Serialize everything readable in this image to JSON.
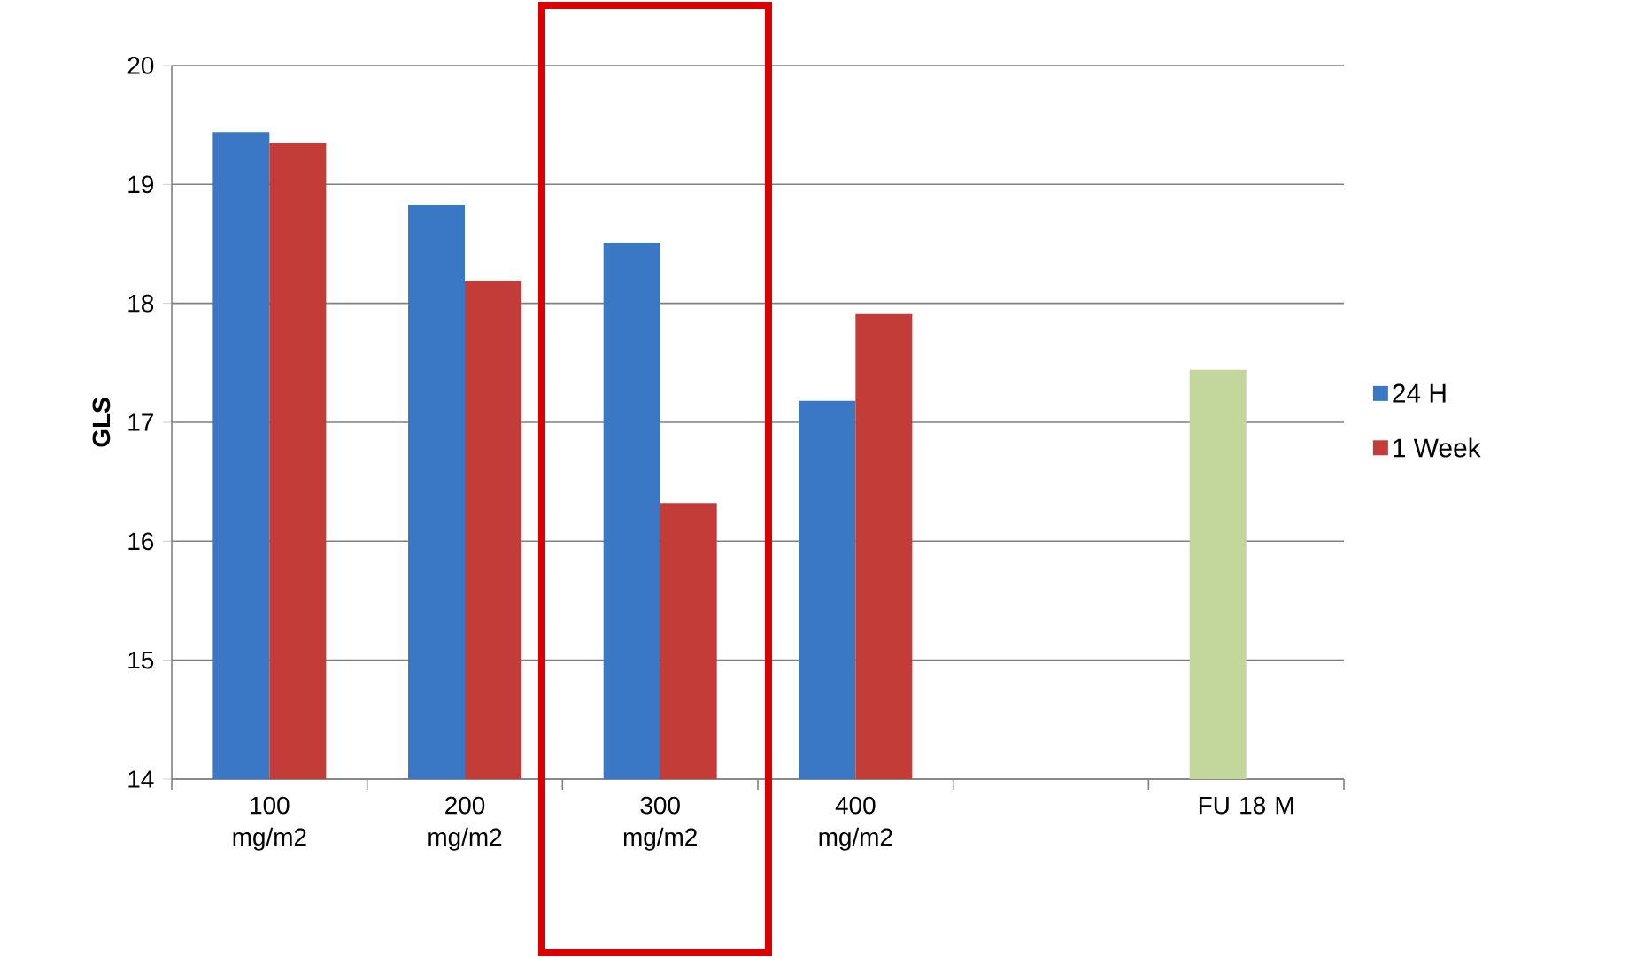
{
  "chart_data": {
    "type": "bar",
    "ylabel": "GLS",
    "categories": [
      "100 mg/m2",
      "200 mg/m2",
      "300 mg/m2",
      "400 mg/m2",
      null,
      "FU 18 M"
    ],
    "series": [
      {
        "name": "24 H",
        "color": "#3a78c6",
        "colors": [
          "#3a78c6",
          "#3a78c6",
          "#3a78c6",
          "#3a78c6",
          "#3a78c6",
          "#c3d69b"
        ],
        "values": [
          19.44,
          18.83,
          18.51,
          17.18,
          null,
          17.44
        ]
      },
      {
        "name": "1 Week",
        "color": "#c43c38",
        "values": [
          19.35,
          18.19,
          16.32,
          17.91,
          null,
          null
        ]
      }
    ],
    "ylim": [
      14,
      20
    ],
    "yticks": [
      14,
      15,
      16,
      17,
      18,
      19,
      20
    ],
    "grid": "y",
    "legend": "right"
  }
}
